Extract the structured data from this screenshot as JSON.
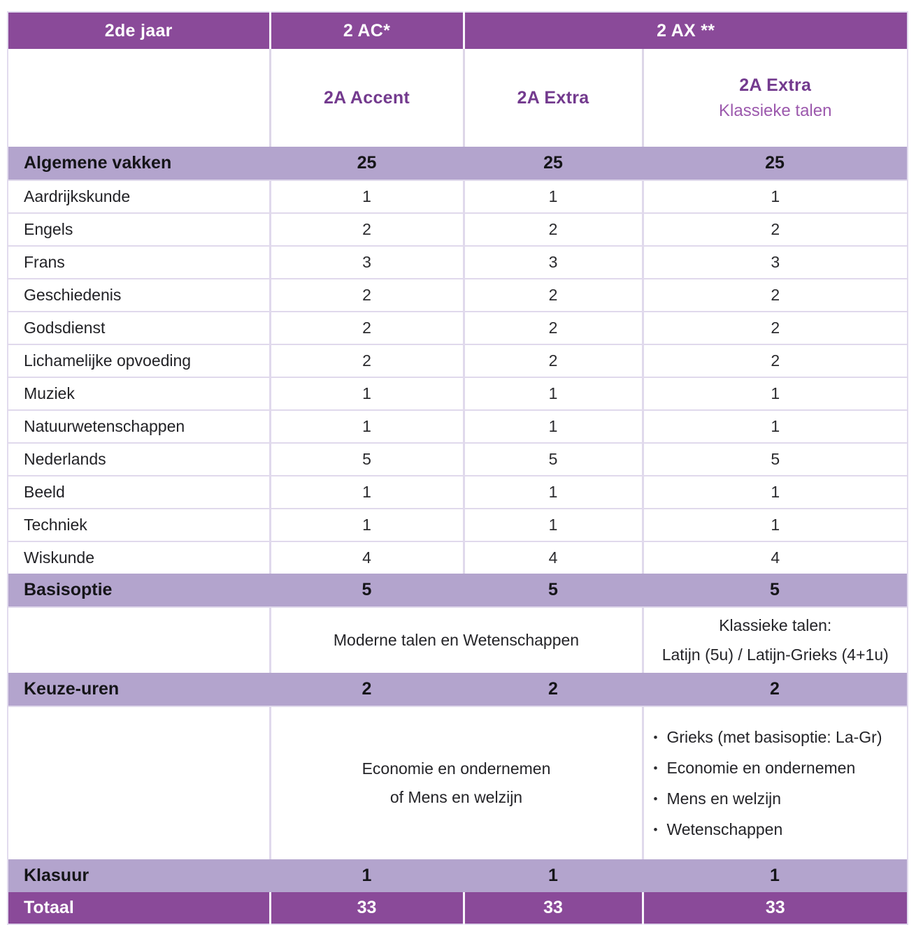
{
  "palette": {
    "header_bg": "#8a4a99",
    "band_bg": "#b3a4cd",
    "accent_text_dark": "#733a8e",
    "accent_text_light": "#9c59ad",
    "grid_line": "#ddd6e8"
  },
  "table": {
    "header": {
      "year": "2de jaar",
      "group_ac": "2 AC*",
      "group_ax": "2 AX **"
    },
    "subheaders": {
      "accent": "2A Accent",
      "extra": "2A Extra",
      "extra_kt_title": "2A Extra",
      "extra_kt_subtitle": "Klassieke talen"
    },
    "algemene": {
      "label": "Algemene vakken",
      "values": [
        "25",
        "25",
        "25"
      ]
    },
    "subjects": [
      {
        "name": "Aardrijkskunde",
        "values": [
          "1",
          "1",
          "1"
        ]
      },
      {
        "name": "Engels",
        "values": [
          "2",
          "2",
          "2"
        ]
      },
      {
        "name": "Frans",
        "values": [
          "3",
          "3",
          "3"
        ]
      },
      {
        "name": "Geschiedenis",
        "values": [
          "2",
          "2",
          "2"
        ]
      },
      {
        "name": "Godsdienst",
        "values": [
          "2",
          "2",
          "2"
        ]
      },
      {
        "name": "Lichamelijke opvoeding",
        "values": [
          "2",
          "2",
          "2"
        ]
      },
      {
        "name": "Muziek",
        "values": [
          "1",
          "1",
          "1"
        ]
      },
      {
        "name": "Natuurwetenschappen",
        "values": [
          "1",
          "1",
          "1"
        ]
      },
      {
        "name": "Nederlands",
        "values": [
          "5",
          "5",
          "5"
        ]
      },
      {
        "name": "Beeld",
        "values": [
          "1",
          "1",
          "1"
        ]
      },
      {
        "name": "Techniek",
        "values": [
          "1",
          "1",
          "1"
        ]
      },
      {
        "name": "Wiskunde",
        "values": [
          "4",
          "4",
          "4"
        ]
      }
    ],
    "basisoptie": {
      "label": "Basisoptie",
      "values": [
        "5",
        "5",
        "5"
      ],
      "moderne_note": "Moderne talen en Wetenschappen",
      "klassieke_note_line1": "Klassieke talen:",
      "klassieke_note_line2": "Latijn (5u) / Latijn-Grieks (4+1u)"
    },
    "keuze": {
      "label": "Keuze-uren",
      "values": [
        "2",
        "2",
        "2"
      ],
      "note_line1": "Economie en ondernemen",
      "note_line2": "of Mens en welzijn",
      "bullets": [
        "Grieks (met basisoptie: La-Gr)",
        "Economie en ondernemen",
        "Mens en welzijn",
        "Wetenschappen"
      ]
    },
    "klasuur": {
      "label": "Klasuur",
      "values": [
        "1",
        "1",
        "1"
      ]
    },
    "totaal": {
      "label": "Totaal",
      "values": [
        "33",
        "33",
        "33"
      ]
    }
  }
}
